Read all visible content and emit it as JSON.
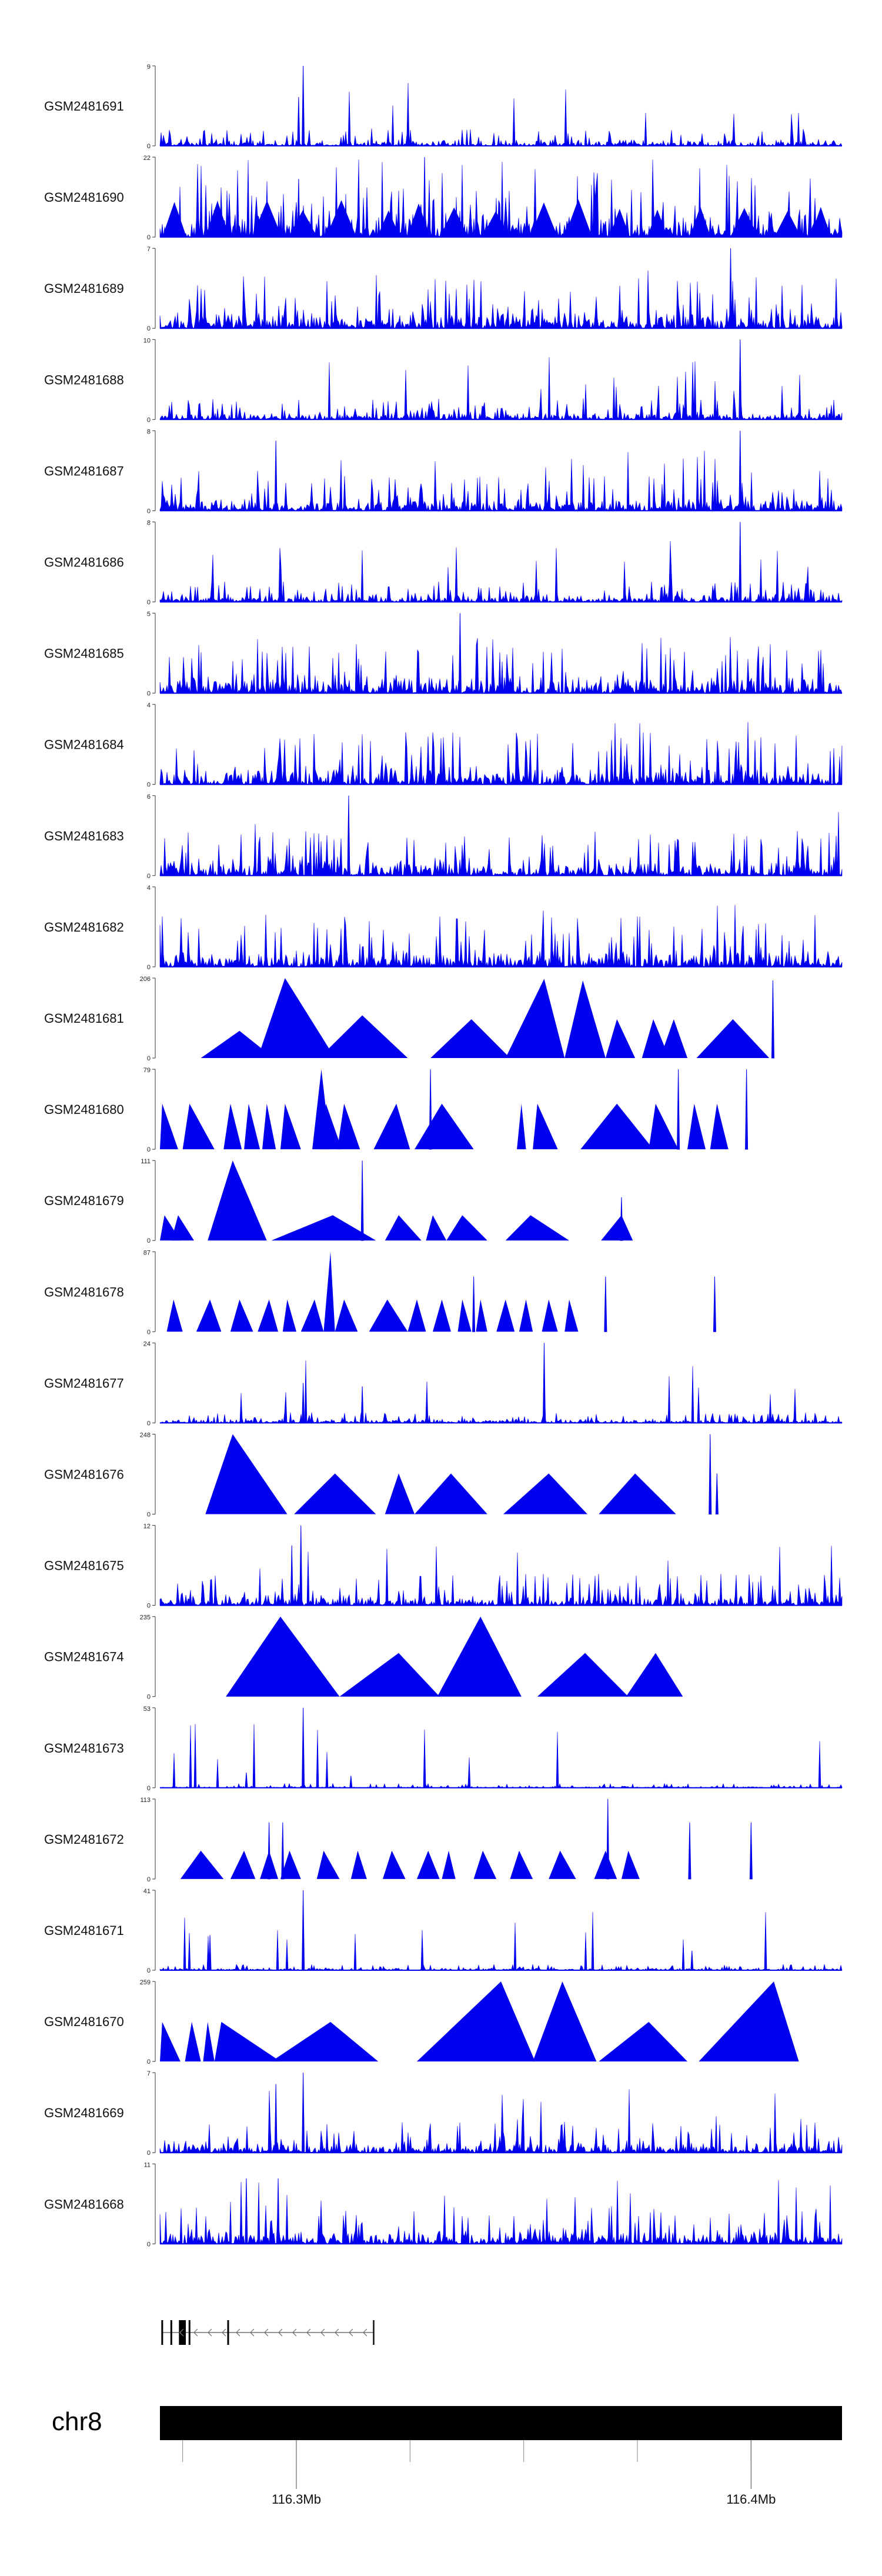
{
  "chart_data": {
    "type": "area",
    "chromosome": "chr8",
    "region_mb": [
      116.27,
      116.42
    ],
    "fill_color": "#0000ee",
    "axis_ticks_mb": [
      116.3,
      116.4
    ],
    "axis_tick_labels": [
      "116.3Mb",
      "116.4Mb"
    ],
    "tracks": [
      {
        "name": "GSM2481691",
        "ymin": 0,
        "ymax": 9,
        "style": "noise",
        "base": 0.1,
        "spikes": [
          [
            116.3015,
            9.0
          ],
          [
            116.3005,
            5.5
          ]
        ]
      },
      {
        "name": "GSM2481690",
        "ymin": 0,
        "ymax": 22,
        "style": "dense_triangles",
        "base": 0.45,
        "spikes": [
          [
            116.3282,
            22.0
          ],
          [
            116.3005,
            16.0
          ]
        ]
      },
      {
        "name": "GSM2481689",
        "ymin": 0,
        "ymax": 7,
        "style": "noise",
        "base": 0.3,
        "spikes": [
          [
            116.3955,
            7.0
          ]
        ]
      },
      {
        "name": "GSM2481688",
        "ymin": 0,
        "ymax": 10,
        "style": "noise",
        "base": 0.12,
        "spikes": [
          [
            116.3976,
            10.0
          ]
        ]
      },
      {
        "name": "GSM2481687",
        "ymin": 0,
        "ymax": 8,
        "style": "noise",
        "base": 0.2,
        "spikes": [
          [
            116.3976,
            8.0
          ],
          [
            116.2955,
            7.0
          ]
        ]
      },
      {
        "name": "GSM2481686",
        "ymin": 0,
        "ymax": 8,
        "style": "noise",
        "base": 0.12,
        "spikes": [
          [
            116.3976,
            8.0
          ]
        ]
      },
      {
        "name": "GSM2481685",
        "ymin": 0,
        "ymax": 5,
        "style": "noise",
        "base": 0.28,
        "spikes": [
          [
            116.336,
            5.0
          ]
        ]
      },
      {
        "name": "GSM2481684",
        "ymin": 0,
        "ymax": 4,
        "style": "noise",
        "base": 0.3,
        "spikes": []
      },
      {
        "name": "GSM2481683",
        "ymin": 0,
        "ymax": 6,
        "style": "noise",
        "base": 0.25,
        "spikes": [
          [
            116.3115,
            6.0
          ]
        ]
      },
      {
        "name": "GSM2481682",
        "ymin": 0,
        "ymax": 4,
        "style": "noise",
        "base": 0.3,
        "spikes": []
      },
      {
        "name": "GSM2481681",
        "ymin": 0,
        "ymax": 206,
        "style": "triangles",
        "peaks": [
          [
            116.279,
            116.2875,
            116.295,
            70
          ],
          [
            116.2915,
            116.2975,
            116.3085,
            206
          ],
          [
            116.305,
            116.3145,
            116.3245,
            110
          ],
          [
            116.3295,
            116.3385,
            116.347,
            100
          ],
          [
            116.346,
            116.3545,
            116.359,
            204
          ],
          [
            116.359,
            116.363,
            116.368,
            200
          ],
          [
            116.368,
            116.3705,
            116.3745,
            100
          ],
          [
            116.376,
            116.3785,
            116.382,
            100
          ],
          [
            116.38,
            116.383,
            116.386,
            100
          ],
          [
            116.388,
            116.396,
            116.404,
            100
          ]
        ],
        "spikes": [
          [
            116.4048,
            200
          ]
        ]
      },
      {
        "name": "GSM2481680",
        "ymin": 0,
        "ymax": 79,
        "style": "triangles",
        "peaks": [
          [
            116.27,
            116.2705,
            116.274,
            45
          ],
          [
            116.275,
            116.2765,
            116.282,
            45
          ],
          [
            116.284,
            116.2855,
            116.288,
            45
          ],
          [
            116.2885,
            116.2895,
            116.292,
            45
          ],
          [
            116.2925,
            116.2935,
            116.2955,
            45
          ],
          [
            116.2965,
            116.2975,
            116.301,
            45
          ],
          [
            116.3035,
            116.3055,
            116.3075,
            79
          ],
          [
            116.305,
            116.3065,
            116.31,
            45
          ],
          [
            116.309,
            116.3105,
            116.314,
            45
          ],
          [
            116.317,
            116.322,
            116.325,
            45
          ],
          [
            116.326,
            116.332,
            116.339,
            45
          ],
          [
            116.3485,
            116.3495,
            116.3505,
            45
          ],
          [
            116.352,
            116.353,
            116.3575,
            45
          ],
          [
            116.3625,
            116.3705,
            116.3785,
            45
          ],
          [
            116.3775,
            116.379,
            116.384,
            45
          ],
          [
            116.386,
            116.3875,
            116.39,
            45
          ],
          [
            116.391,
            116.3925,
            116.395,
            45
          ]
        ],
        "spikes": [
          [
            116.3295,
            79
          ],
          [
            116.384,
            79
          ],
          [
            116.399,
            79
          ]
        ]
      },
      {
        "name": "GSM2481679",
        "ymin": 0,
        "ymax": 111,
        "style": "triangles",
        "peaks": [
          [
            116.27,
            116.271,
            116.2745,
            35
          ],
          [
            116.2725,
            116.274,
            116.2775,
            35
          ],
          [
            116.2805,
            116.286,
            116.2935,
            111
          ],
          [
            116.2945,
            116.308,
            116.3175,
            35
          ],
          [
            116.3195,
            116.3225,
            116.3275,
            35
          ],
          [
            116.3285,
            116.33,
            116.333,
            35
          ],
          [
            116.333,
            116.3365,
            116.342,
            35
          ],
          [
            116.346,
            116.3515,
            116.36,
            35
          ],
          [
            116.367,
            116.3715,
            116.374,
            35
          ]
        ],
        "spikes": [
          [
            116.3145,
            111
          ],
          [
            116.3715,
            60
          ]
        ]
      },
      {
        "name": "GSM2481678",
        "ymin": 0,
        "ymax": 87,
        "style": "triangles",
        "peaks": [
          [
            116.2715,
            116.273,
            116.275,
            35
          ],
          [
            116.278,
            116.281,
            116.2835,
            35
          ],
          [
            116.2855,
            116.2875,
            116.2905,
            35
          ],
          [
            116.2915,
            116.294,
            116.296,
            35
          ],
          [
            116.297,
            116.298,
            116.3,
            35
          ],
          [
            116.301,
            116.304,
            116.306,
            35
          ],
          [
            116.306,
            116.3075,
            116.3085,
            87
          ],
          [
            116.3085,
            116.3105,
            116.3135,
            35
          ],
          [
            116.316,
            116.32,
            116.3245,
            35
          ],
          [
            116.3245,
            116.3265,
            116.3285,
            35
          ],
          [
            116.33,
            116.332,
            116.334,
            35
          ],
          [
            116.3355,
            116.3365,
            116.3385,
            35
          ],
          [
            116.3395,
            116.3405,
            116.342,
            35
          ],
          [
            116.344,
            116.346,
            116.348,
            35
          ],
          [
            116.349,
            116.3505,
            116.352,
            35
          ],
          [
            116.354,
            116.3555,
            116.3575,
            35
          ],
          [
            116.359,
            116.36,
            116.362,
            35
          ]
        ],
        "spikes": [
          [
            116.339,
            60
          ],
          [
            116.368,
            60
          ],
          [
            116.392,
            60
          ]
        ]
      },
      {
        "name": "GSM2481677",
        "ymin": 0,
        "ymax": 24,
        "style": "noise",
        "base": 0.06,
        "spikes": [
          [
            116.3545,
            24.0
          ],
          [
            116.3015,
            12.0
          ],
          [
            116.3145,
            11.0
          ]
        ]
      },
      {
        "name": "GSM2481676",
        "ymin": 0,
        "ymax": 248,
        "style": "triangles",
        "peaks": [
          [
            116.28,
            116.286,
            116.298,
            248
          ],
          [
            116.2995,
            116.3085,
            116.3175,
            126
          ],
          [
            116.3195,
            116.3225,
            116.326,
            126
          ],
          [
            116.326,
            116.334,
            116.342,
            126
          ],
          [
            116.3455,
            116.3555,
            116.364,
            126
          ],
          [
            116.3665,
            116.3745,
            116.3835,
            126
          ]
        ],
        "spikes": [
          [
            116.391,
            248
          ],
          [
            116.3925,
            126
          ]
        ]
      },
      {
        "name": "GSM2481675",
        "ymin": 0,
        "ymax": 12,
        "style": "noise",
        "base": 0.18,
        "spikes": [
          [
            116.301,
            12.0
          ],
          [
            116.299,
            9.0
          ]
        ]
      },
      {
        "name": "GSM2481674",
        "ymin": 0,
        "ymax": 235,
        "style": "triangles",
        "peaks": [
          [
            116.2845,
            116.2965,
            116.3095,
            235
          ],
          [
            116.3095,
            116.3225,
            116.3315,
            128
          ],
          [
            116.331,
            116.3405,
            116.3495,
            235
          ],
          [
            116.353,
            116.3635,
            116.373,
            128
          ],
          [
            116.3725,
            116.379,
            116.385,
            128
          ]
        ],
        "spikes": []
      },
      {
        "name": "GSM2481673",
        "ymin": 0,
        "ymax": 53,
        "style": "noise",
        "base": 0.025,
        "spikes": [
          [
            116.3015,
            53.0
          ],
          [
            116.289,
            10.0
          ],
          [
            116.312,
            8.0
          ]
        ]
      },
      {
        "name": "GSM2481672",
        "ymin": 0,
        "ymax": 113,
        "style": "triangles",
        "peaks": [
          [
            116.2745,
            116.279,
            116.284,
            40
          ],
          [
            116.2855,
            116.2885,
            116.291,
            40
          ],
          [
            116.292,
            116.294,
            116.296,
            40
          ],
          [
            116.2965,
            116.2985,
            116.301,
            40
          ],
          [
            116.3045,
            116.306,
            116.3095,
            40
          ],
          [
            116.312,
            116.3135,
            116.3155,
            40
          ],
          [
            116.319,
            116.321,
            116.324,
            40
          ],
          [
            116.3265,
            116.329,
            116.3315,
            40
          ],
          [
            116.332,
            116.3335,
            116.335,
            40
          ],
          [
            116.339,
            116.341,
            116.344,
            40
          ],
          [
            116.347,
            116.349,
            116.352,
            40
          ],
          [
            116.3555,
            116.358,
            116.3615,
            40
          ],
          [
            116.3655,
            116.368,
            116.3705,
            40
          ],
          [
            116.3715,
            116.373,
            116.3755,
            40
          ]
        ],
        "spikes": [
          [
            116.294,
            80
          ],
          [
            116.297,
            80
          ],
          [
            116.3685,
            113
          ],
          [
            116.3865,
            80
          ],
          [
            116.4,
            80
          ]
        ]
      },
      {
        "name": "GSM2481671",
        "ymin": 0,
        "ymax": 41,
        "style": "noise",
        "base": 0.035,
        "spikes": [
          [
            116.3015,
            41.0
          ],
          [
            116.281,
            18.0
          ],
          [
            116.387,
            10.0
          ]
        ]
      },
      {
        "name": "GSM2481670",
        "ymin": 0,
        "ymax": 259,
        "style": "triangles",
        "peaks": [
          [
            116.27,
            116.2705,
            116.2745,
            128
          ],
          [
            116.2755,
            116.277,
            116.279,
            128
          ],
          [
            116.2795,
            116.2805,
            116.282,
            128
          ],
          [
            116.282,
            116.2835,
            116.2965,
            128
          ],
          [
            116.2945,
            116.3075,
            116.318,
            128
          ],
          [
            116.3265,
            116.345,
            116.3525,
            259
          ],
          [
            116.352,
            116.3585,
            116.366,
            259
          ],
          [
            116.3665,
            116.3775,
            116.386,
            128
          ],
          [
            116.3885,
            116.405,
            116.4105,
            259
          ]
        ],
        "spikes": []
      },
      {
        "name": "GSM2481669",
        "ymin": 0,
        "ymax": 7,
        "style": "noise",
        "base": 0.18,
        "spikes": [
          [
            116.3015,
            7.0
          ],
          [
            116.2955,
            6.0
          ]
        ]
      },
      {
        "name": "GSM2481668",
        "ymin": 0,
        "ymax": 11,
        "style": "noise",
        "base": 0.22,
        "spikes": [
          [
            116.289,
            9.0
          ],
          [
            116.296,
            9.0
          ]
        ]
      }
    ],
    "gene_model": {
      "strand": "-",
      "start_mb": 116.2705,
      "end_mb": 116.317,
      "exons_mb": [
        116.2705,
        116.2725,
        116.2745,
        116.275,
        116.2755,
        116.2765,
        116.285
      ]
    }
  }
}
